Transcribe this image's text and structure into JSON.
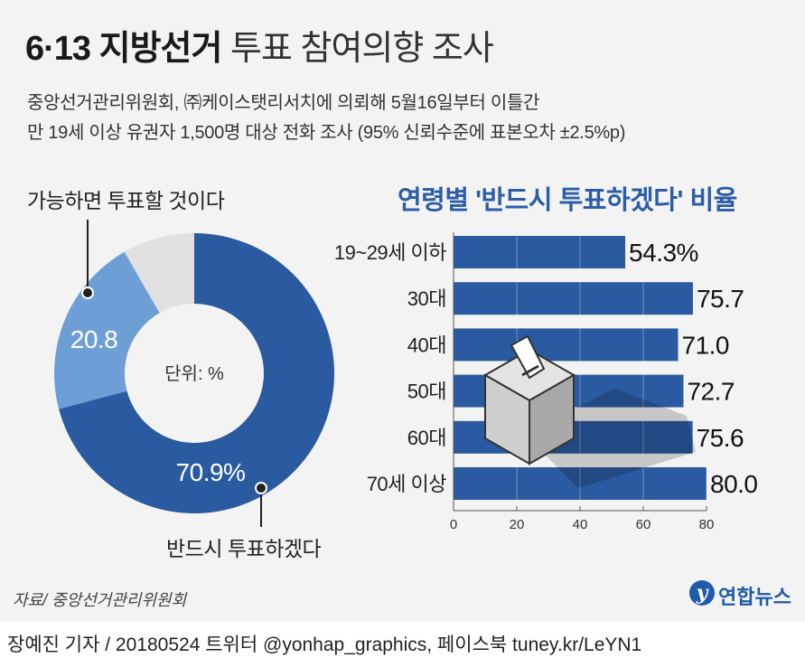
{
  "header": {
    "title_bold": "6·13 지방선거",
    "title_light": "투표 참여의향 조사",
    "subtitle_line1": "중앙선거관리위원회, ㈜케이스탯리서치에 의뢰해 5월16일부터 이틀간",
    "subtitle_line2": "만 19세 이상 유권자 1,500명 대상 전화 조사 (95% 신뢰수준에 표본오차 ±2.5%p)"
  },
  "chart_data": [
    {
      "type": "pie",
      "center_label": "단위: %",
      "slices": [
        {
          "label": "반드시 투표하겠다",
          "value": 70.9,
          "value_label": "70.9%",
          "color": "#2a5aa0"
        },
        {
          "label": "가능하면 투표할 것이다",
          "value": 20.8,
          "value_label": "20.8",
          "color": "#6d9fd6"
        },
        {
          "label": "",
          "value": 8.3,
          "value_label": "",
          "color": "#e1e1e1"
        }
      ]
    },
    {
      "type": "bar",
      "orientation": "horizontal",
      "title": "연령별 '반드시 투표하겠다' 비율",
      "categories": [
        "19~29세 이하",
        "30대",
        "40대",
        "50대",
        "60대",
        "70세 이상"
      ],
      "values": [
        54.3,
        75.7,
        71.0,
        72.7,
        75.6,
        80.0
      ],
      "value_labels": [
        "54.3%",
        "75.7",
        "71.0",
        "72.7",
        "75.6",
        "80.0"
      ],
      "xlim": [
        0,
        80
      ],
      "xticks": [
        "0",
        "20",
        "40",
        "60",
        "80"
      ],
      "color": "#2a5aa0"
    }
  ],
  "source": "자료/ 중앙선거관리위원회",
  "footer": "장예진 기자 / 20180524 트위터 @yonhap_graphics, 페이스북 tuney.kr/LeYN1",
  "logo": {
    "mark": "y",
    "text": "연합뉴스"
  }
}
